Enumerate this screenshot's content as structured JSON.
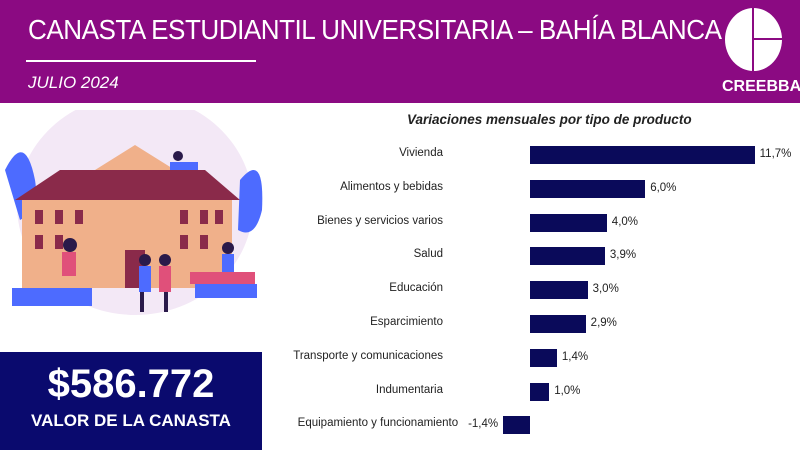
{
  "header": {
    "title": "CANASTA ESTUDIANTIL UNIVERSITARIA – BAHÍA BLANCA",
    "date": "JULIO 2024",
    "logo_text": "CREEBBA"
  },
  "summary": {
    "value": "$586.772",
    "label": "VALOR DE LA CANASTA"
  },
  "colors": {
    "header": "#8b0a82",
    "bar": "#0a0a5a",
    "value_box": "#0a0a6e"
  },
  "chart_data": {
    "type": "bar",
    "orientation": "horizontal",
    "title": "Variaciones mensuales por tipo de producto",
    "categories": [
      "Vivienda",
      "Alimentos y bebidas",
      "Bienes y servicios varios",
      "Salud",
      "Educación",
      "Esparcimiento",
      "Transporte y comunicaciones",
      "Indumentaria",
      "Equipamiento y funcionamiento"
    ],
    "values": [
      11.7,
      6.0,
      4.0,
      3.9,
      3.0,
      2.9,
      1.4,
      1.0,
      -1.4
    ],
    "labels": [
      "11,7%",
      "6,0%",
      "4,0%",
      "3,9%",
      "3,0%",
      "2,9%",
      "1,4%",
      "1,0%",
      "-1,4%"
    ],
    "unit": "%"
  }
}
